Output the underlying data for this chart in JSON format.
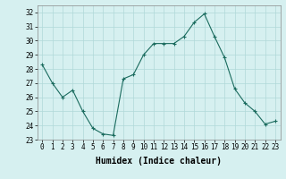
{
  "x": [
    0,
    1,
    2,
    3,
    4,
    5,
    6,
    7,
    8,
    9,
    10,
    11,
    12,
    13,
    14,
    15,
    16,
    17,
    18,
    19,
    20,
    21,
    22,
    23
  ],
  "y": [
    28.3,
    27.0,
    26.0,
    26.5,
    25.0,
    23.8,
    23.4,
    23.3,
    27.3,
    27.6,
    29.0,
    29.8,
    29.8,
    29.8,
    30.3,
    31.3,
    31.9,
    30.3,
    28.8,
    26.6,
    25.6,
    25.0,
    24.1,
    24.3
  ],
  "line_color": "#1a6b5e",
  "marker": "+",
  "marker_size": 3,
  "bg_color": "#d6f0f0",
  "grid_color": "#b0d8d8",
  "xlabel": "Humidex (Indice chaleur)",
  "xlim": [
    -0.5,
    23.5
  ],
  "ylim": [
    23,
    32.5
  ],
  "yticks": [
    23,
    24,
    25,
    26,
    27,
    28,
    29,
    30,
    31,
    32
  ],
  "xticks": [
    0,
    1,
    2,
    3,
    4,
    5,
    6,
    7,
    8,
    9,
    10,
    11,
    12,
    13,
    14,
    15,
    16,
    17,
    18,
    19,
    20,
    21,
    22,
    23
  ],
  "tick_label_fontsize": 5.5,
  "xlabel_fontsize": 7
}
